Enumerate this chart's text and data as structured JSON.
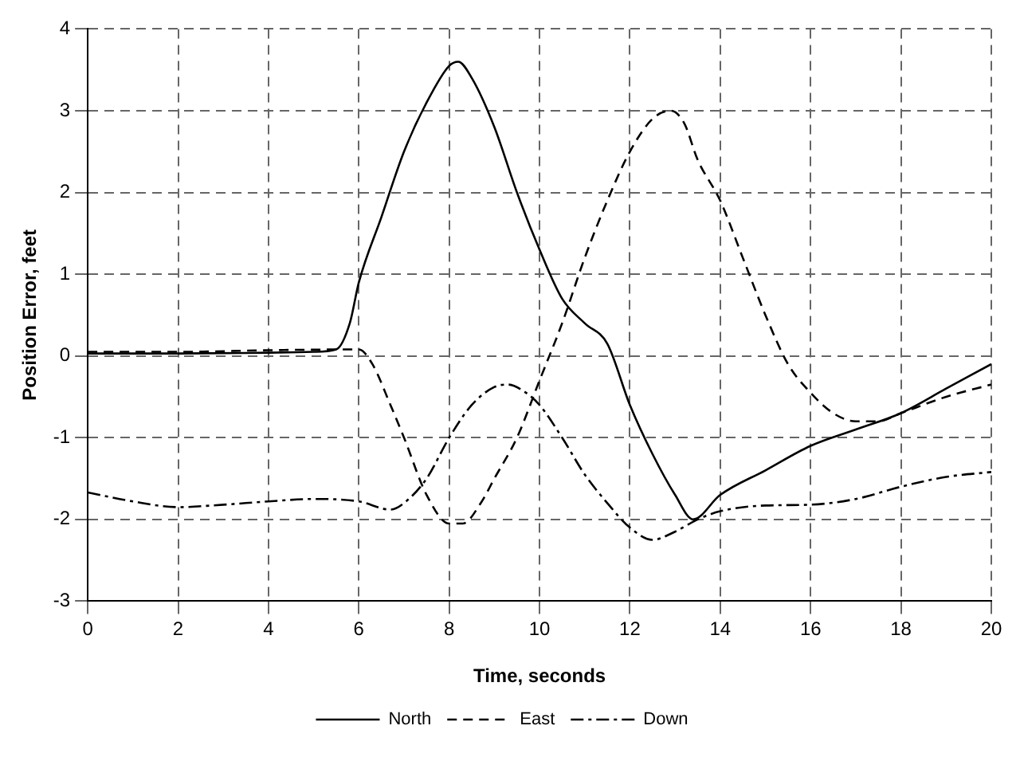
{
  "chart_data": {
    "type": "line",
    "xlabel": "Time, seconds",
    "ylabel": "Position Error, feet",
    "xlim": [
      0,
      20
    ],
    "xticks": [
      0,
      2,
      4,
      6,
      8,
      10,
      12,
      14,
      16,
      18,
      20
    ],
    "ylim": [
      -3,
      4
    ],
    "yticks": [
      -3,
      -2,
      -1,
      0,
      1,
      2,
      3,
      4
    ],
    "grid": true,
    "legend": "bottom",
    "marker": "none",
    "series": [
      {
        "name": "North",
        "color": "#000000",
        "line_style": "solid",
        "x": [
          0,
          2,
          4,
          5,
          5.5,
          5.8,
          6,
          6.5,
          7,
          7.5,
          8,
          8.2,
          8.5,
          9,
          9.5,
          10,
          10.5,
          11,
          11.5,
          12,
          12.5,
          13,
          13.4,
          14,
          15,
          16,
          17,
          18,
          19,
          20
        ],
        "values": [
          0.03,
          0.03,
          0.04,
          0.05,
          0.08,
          0.4,
          0.9,
          1.7,
          2.5,
          3.1,
          3.55,
          3.6,
          3.4,
          2.8,
          2.0,
          1.3,
          0.7,
          0.4,
          0.15,
          -0.6,
          -1.2,
          -1.7,
          -2.0,
          -1.7,
          -1.4,
          -1.1,
          -0.9,
          -0.7,
          -0.4,
          -0.1
        ]
      },
      {
        "name": "East",
        "color": "#000000",
        "line_style": "dashed",
        "x": [
          0,
          2,
          4,
          6,
          6.3,
          6.7,
          7,
          7.5,
          8,
          8.3,
          8.7,
          9,
          9.5,
          10,
          10.5,
          11,
          11.5,
          12,
          12.5,
          12.9,
          13.2,
          13.5,
          14,
          14.5,
          15,
          15.5,
          16,
          16.5,
          17,
          17.5,
          18,
          19,
          20
        ],
        "values": [
          0.05,
          0.05,
          0.07,
          0.08,
          -0.1,
          -0.6,
          -1.0,
          -1.7,
          -2.05,
          -2.05,
          -1.8,
          -1.5,
          -1.0,
          -0.3,
          0.4,
          1.2,
          1.9,
          2.5,
          2.9,
          3.0,
          2.85,
          2.4,
          1.9,
          1.2,
          0.5,
          -0.1,
          -0.45,
          -0.7,
          -0.8,
          -0.8,
          -0.7,
          -0.5,
          -0.35
        ]
      },
      {
        "name": "Down",
        "color": "#000000",
        "line_style": "dashdot",
        "x": [
          0,
          1,
          2,
          3,
          4,
          5,
          6,
          6.7,
          7,
          7.5,
          8,
          8.5,
          9,
          9.3,
          9.7,
          10,
          10.5,
          11,
          11.5,
          12,
          12.5,
          13,
          13.5,
          14,
          15,
          16,
          17,
          18,
          19,
          20
        ],
        "values": [
          -1.67,
          -1.78,
          -1.85,
          -1.82,
          -1.78,
          -1.75,
          -1.78,
          -1.88,
          -1.8,
          -1.5,
          -1.0,
          -0.6,
          -0.38,
          -0.35,
          -0.45,
          -0.6,
          -1.0,
          -1.45,
          -1.8,
          -2.1,
          -2.25,
          -2.15,
          -2.0,
          -1.9,
          -1.83,
          -1.82,
          -1.75,
          -1.6,
          -1.48,
          -1.42
        ]
      }
    ]
  }
}
